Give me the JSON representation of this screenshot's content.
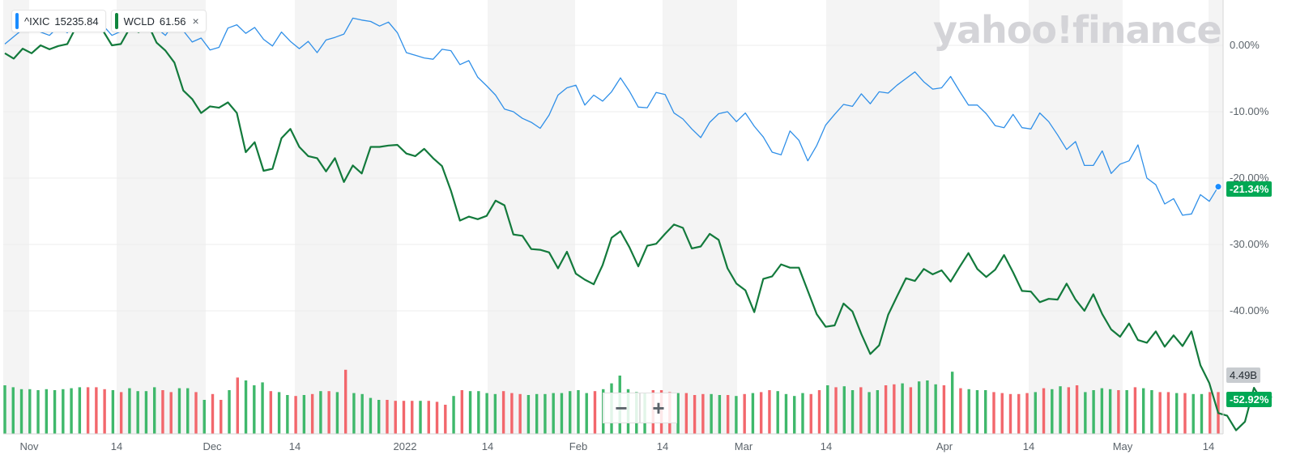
{
  "legend": [
    {
      "symbol": "^IXIC",
      "value": "15235.84",
      "color": "#1a8cff",
      "close": "×"
    },
    {
      "symbol": "WCLD",
      "value": "61.56",
      "color": "#10853d",
      "close": "×"
    }
  ],
  "watermark": "yahoo!finance",
  "zoom": {
    "minus": "−",
    "plus": "+"
  },
  "tags": {
    "ixic_last": "-21.34%",
    "wcld_last": "-52.92%",
    "volume_last": "4.49B"
  },
  "colors": {
    "ixic": "#2f8fe8",
    "wcld": "#137a3c",
    "vol_up": "#3fb86b",
    "vol_down": "#f2676c",
    "band": "#f4f4f4"
  },
  "chart_data": {
    "type": "line",
    "x_axis": {
      "labels": [
        "Nov",
        "14",
        "Dec",
        "14",
        "2022",
        "14",
        "Feb",
        "14",
        "Mar",
        "14",
        "Apr",
        "14",
        "May",
        "14"
      ]
    },
    "y_axis": {
      "labels": [
        "0.00%",
        "-10.00%",
        "-20.00%",
        "-30.00%",
        "-40.00%"
      ],
      "ticks": [
        0,
        -10,
        -20,
        -30,
        -40
      ],
      "ylim": [
        -58,
        5.3
      ],
      "position": "right"
    },
    "series": [
      {
        "name": "^IXIC",
        "values": [
          0.2,
          1.3,
          2.4,
          3.2,
          2.0,
          1.5,
          2.8,
          1.9,
          3.6,
          2.7,
          4.4,
          3.0,
          1.5,
          2.1,
          3.3,
          2.6,
          4.0,
          2.6,
          1.5,
          3.5,
          2.2,
          0.5,
          1.1,
          -0.7,
          -0.3,
          2.6,
          3.1,
          1.8,
          2.7,
          0.9,
          -0.1,
          2.0,
          0.6,
          -0.5,
          0.6,
          -1.1,
          0.8,
          1.2,
          1.7,
          4.1,
          3.8,
          3.6,
          2.9,
          3.5,
          1.9,
          -1.1,
          -1.5,
          -1.9,
          -2.1,
          -0.6,
          -0.8,
          -2.9,
          -2.3,
          -4.8,
          -6.1,
          -7.5,
          -9.6,
          -10.0,
          -11.0,
          -11.6,
          -12.5,
          -10.5,
          -7.5,
          -6.4,
          -6.0,
          -9.0,
          -7.5,
          -8.4,
          -7.0,
          -4.9,
          -6.9,
          -9.3,
          -9.4,
          -7.1,
          -7.4,
          -10.2,
          -11.1,
          -12.6,
          -13.9,
          -11.6,
          -10.3,
          -10.0,
          -11.5,
          -10.2,
          -12.2,
          -13.8,
          -16.1,
          -16.5,
          -12.9,
          -14.3,
          -17.4,
          -15.1,
          -12.0,
          -10.4,
          -8.9,
          -9.2,
          -7.3,
          -8.8,
          -7.0,
          -7.2,
          -6.0,
          -5.0,
          -4.0,
          -5.5,
          -6.6,
          -6.4,
          -4.7,
          -6.9,
          -9.0,
          -9.0,
          -10.3,
          -12.1,
          -12.4,
          -10.4,
          -12.4,
          -12.6,
          -10.2,
          -11.5,
          -13.5,
          -15.7,
          -14.5,
          -18.1,
          -18.1,
          -15.9,
          -19.3,
          -17.9,
          -17.4,
          -15.0,
          -20.0,
          -21.0,
          -23.9,
          -23.1,
          -25.6,
          -25.4,
          -22.5,
          -23.5,
          -21.3
        ]
      },
      {
        "name": "WCLD",
        "values": [
          -1.2,
          -2.0,
          -0.5,
          -1.2,
          0.0,
          -0.6,
          -0.1,
          0.2,
          2.8,
          2.2,
          4.8,
          2.2,
          0.0,
          0.2,
          2.6,
          2.0,
          3.3,
          0.4,
          -0.8,
          -2.6,
          -6.8,
          -8.1,
          -10.2,
          -9.2,
          -9.4,
          -8.6,
          -10.2,
          -16.1,
          -14.6,
          -18.9,
          -18.6,
          -14.0,
          -12.6,
          -15.3,
          -16.7,
          -17.0,
          -19.0,
          -17.0,
          -20.6,
          -18.1,
          -19.3,
          -15.3,
          -15.3,
          -15.1,
          -15.0,
          -16.3,
          -16.7,
          -15.6,
          -17.0,
          -18.2,
          -21.9,
          -26.4,
          -25.8,
          -26.2,
          -25.7,
          -23.4,
          -24.1,
          -28.5,
          -28.7,
          -30.7,
          -30.8,
          -31.2,
          -33.6,
          -31.1,
          -34.4,
          -35.3,
          -36.0,
          -33.1,
          -29.0,
          -28.0,
          -30.4,
          -33.3,
          -30.2,
          -29.9,
          -28.4,
          -27.0,
          -27.5,
          -30.6,
          -30.3,
          -28.4,
          -29.3,
          -33.6,
          -35.9,
          -36.9,
          -40.2,
          -35.2,
          -34.8,
          -33.0,
          -33.5,
          -33.5,
          -37.0,
          -40.5,
          -42.4,
          -42.2,
          -38.9,
          -40.1,
          -43.5,
          -46.5,
          -45.2,
          -40.6,
          -37.8,
          -35.1,
          -35.5,
          -33.7,
          -34.5,
          -33.9,
          -35.6,
          -33.4,
          -31.3,
          -33.7,
          -34.9,
          -33.8,
          -31.6,
          -34.2,
          -37.0,
          -37.1,
          -38.7,
          -38.2,
          -38.3,
          -35.9,
          -38.3,
          -40.0,
          -37.5,
          -40.5,
          -42.8,
          -43.9,
          -41.9,
          -44.4,
          -44.8,
          -43.1,
          -45.4,
          -43.7,
          -45.3,
          -43.1,
          -48.2,
          -50.9,
          -55.4,
          -55.8,
          -58.0,
          -56.7,
          -51.6,
          -53.8,
          -52.9
        ]
      }
    ],
    "volume": {
      "last_label": "4.49B",
      "values": [
        95,
        93,
        91,
        91,
        90,
        91,
        90,
        91,
        92,
        93,
        93,
        93,
        91,
        90,
        88,
        92,
        89,
        89,
        93,
        90,
        88,
        92,
        92,
        88,
        80,
        86,
        80,
        90,
        103,
        100,
        95,
        98,
        89,
        88,
        85,
        84,
        85,
        86,
        89,
        89,
        88,
        111,
        87,
        86,
        82,
        80,
        80,
        79,
        79,
        79,
        79,
        79,
        78,
        75,
        84,
        90,
        89,
        89,
        87,
        86,
        89,
        87,
        86,
        85,
        86,
        86,
        87,
        87,
        89,
        90,
        87,
        89,
        91,
        97,
        105,
        91,
        88,
        87,
        90,
        90,
        88,
        87,
        87,
        85,
        86,
        86,
        85,
        85,
        84,
        86,
        87,
        88,
        90,
        89,
        86,
        84,
        87,
        86,
        90,
        95,
        93,
        94,
        90,
        93,
        88,
        90,
        95,
        96,
        97,
        93,
        99,
        100,
        96,
        95,
        109,
        92,
        91,
        90,
        90,
        88,
        87,
        86,
        86,
        87,
        88,
        92,
        91,
        94,
        93,
        95,
        88,
        90,
        92,
        91,
        90,
        90,
        93,
        92,
        90,
        88,
        88,
        87,
        87,
        86,
        86,
        88,
        88
      ],
      "up": [
        1,
        1,
        1,
        1,
        1,
        1,
        1,
        1,
        1,
        1,
        0,
        0,
        0,
        1,
        0,
        1,
        1,
        1,
        1,
        0,
        0,
        1,
        1,
        0,
        1,
        0,
        0,
        1,
        0,
        1,
        1,
        1,
        0,
        1,
        1,
        0,
        1,
        0,
        1,
        0,
        1,
        0,
        1,
        1,
        1,
        1,
        0,
        0,
        0,
        0,
        1,
        0,
        0,
        0,
        1,
        0,
        1,
        1,
        1,
        1,
        0,
        0,
        0,
        1,
        1,
        1,
        1,
        1,
        1,
        1,
        1,
        0,
        1,
        1,
        1,
        1,
        1,
        1,
        0,
        0,
        0,
        1,
        0,
        0,
        0,
        1,
        1,
        0,
        1,
        0,
        1,
        0,
        0,
        1,
        1,
        1,
        1,
        0,
        0,
        1,
        0,
        1,
        1,
        0,
        1,
        1,
        0,
        0,
        1,
        0,
        1,
        1,
        1,
        0,
        1,
        0,
        1,
        1,
        1,
        0,
        0,
        0,
        0,
        0,
        1,
        0,
        1,
        1,
        0,
        0,
        1,
        1,
        1,
        1,
        0,
        1,
        0,
        1,
        1,
        0,
        0,
        1,
        0,
        1,
        1,
        0,
        0
      ]
    }
  }
}
